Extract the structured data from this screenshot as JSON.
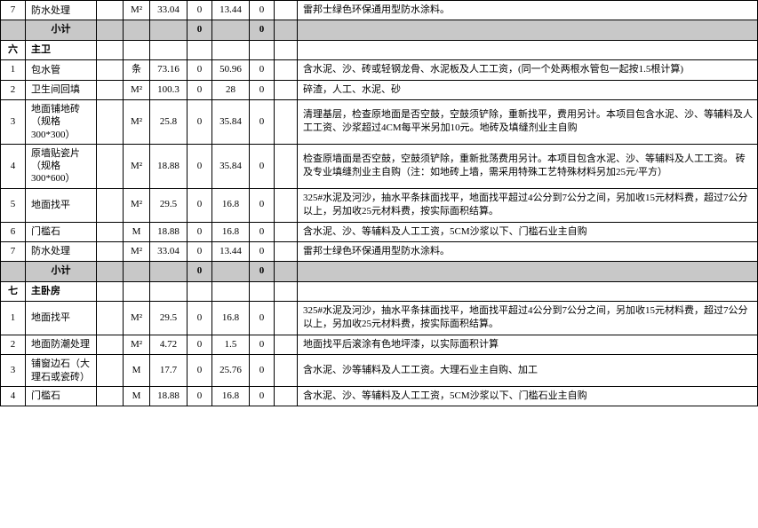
{
  "sections": [
    {
      "index": "",
      "title": "",
      "pre_rows": [
        {
          "n": "7",
          "name": "防水处理",
          "unit": "M²",
          "qty": "33.04",
          "a": "0",
          "b": "13.44",
          "c": "0",
          "desc": "雷邦士绿色环保通用型防水涂料。"
        }
      ],
      "subtotal": {
        "label": "小计",
        "a": "0",
        "c": "0"
      }
    },
    {
      "index": "六",
      "title": "主卫",
      "rows": [
        {
          "n": "1",
          "name": "包水管",
          "unit": "条",
          "qty": "73.16",
          "a": "0",
          "b": "50.96",
          "c": "0",
          "desc": "含水泥、沙、砖或轻钢龙骨、水泥板及人工工资，(同一个处两根水管包一起按1.5根计算)"
        },
        {
          "n": "2",
          "name": "卫生间回填",
          "unit": "M²",
          "qty": "100.3",
          "a": "0",
          "b": "28",
          "c": "0",
          "desc": "碎渣，人工、水泥、砂"
        },
        {
          "n": "3",
          "name": "地面铺地砖（规格300*300）",
          "unit": "M²",
          "qty": "25.8",
          "a": "0",
          "b": "35.84",
          "c": "0",
          "desc": "清理基层，检查原地面是否空鼓，空鼓须铲除，重新找平，费用另计。本项目包含水泥、沙、等辅料及人工工资、沙浆超过4CM每平米另加10元。地砖及填缝剂业主自购"
        },
        {
          "n": "4",
          "name": "原墙贴瓷片（规格300*600）",
          "unit": "M²",
          "qty": "18.88",
          "a": "0",
          "b": "35.84",
          "c": "0",
          "desc": "检查原墙面是否空鼓，空鼓须铲除，重新批荡费用另计。本项目包含水泥、沙、等辅料及人工工资。 砖及专业填缝剂业主自购（注：如地砖上墙，需采用特殊工艺特殊材料另加25元/平方）"
        },
        {
          "n": "5",
          "name": "地面找平",
          "unit": "M²",
          "qty": "29.5",
          "a": "0",
          "b": "16.8",
          "c": "0",
          "desc": "325#水泥及河沙，抽水平条抹面找平，地面找平超过4公分到7公分之间，另加收15元材料费，超过7公分以上，另加收25元材料费，按实际面积结算。"
        },
        {
          "n": "6",
          "name": "门槛石",
          "unit": "M",
          "qty": "18.88",
          "a": "0",
          "b": "16.8",
          "c": "0",
          "desc": "含水泥、沙、等辅料及人工工资，5CM沙浆以下、门槛石业主自购"
        },
        {
          "n": "7",
          "name": "防水处理",
          "unit": "M²",
          "qty": "33.04",
          "a": "0",
          "b": "13.44",
          "c": "0",
          "desc": "雷邦士绿色环保通用型防水涂料。"
        }
      ],
      "subtotal": {
        "label": "小计",
        "a": "0",
        "c": "0"
      }
    },
    {
      "index": "七",
      "title": "主卧房",
      "rows": [
        {
          "n": "1",
          "name": "地面找平",
          "unit": "M²",
          "qty": "29.5",
          "a": "0",
          "b": "16.8",
          "c": "0",
          "desc": "325#水泥及河沙，抽水平条抹面找平，地面找平超过4公分到7公分之间，另加收15元材料费，超过7公分以上，另加收25元材料费，按实际面积结算。"
        },
        {
          "n": "2",
          "name": "地面防潮处理",
          "unit": "M²",
          "qty": "4.72",
          "a": "0",
          "b": "1.5",
          "c": "0",
          "desc": "地面找平后滚涂有色地坪漆，以实际面积计算"
        },
        {
          "n": "3",
          "name": "铺窗边石（大理石或瓷砖）",
          "unit": "M",
          "qty": "17.7",
          "a": "0",
          "b": "25.76",
          "c": "0",
          "desc": "含水泥、沙等辅料及人工工资。大理石业主自购、加工"
        },
        {
          "n": "4",
          "name": "门槛石",
          "unit": "M",
          "qty": "18.88",
          "a": "0",
          "b": "16.8",
          "c": "0",
          "desc": "含水泥、沙、等辅料及人工工资，5CM沙浆以下、门槛石业主自购"
        }
      ]
    }
  ],
  "colors": {
    "subtotal_bg": "#c8c8c8",
    "border": "#000000",
    "bg": "#ffffff"
  },
  "font": {
    "family": "SimSun",
    "size_pt": 9
  }
}
